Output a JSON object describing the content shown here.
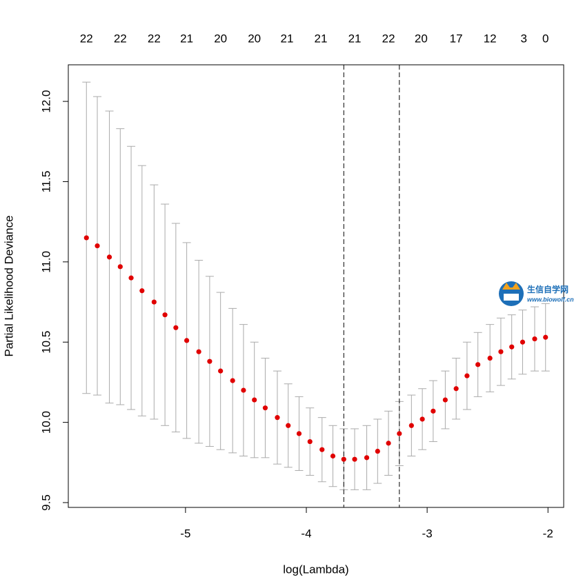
{
  "chart_data": {
    "type": "errorbar",
    "xlabel": "log(Lambda)",
    "ylabel": "Partial Likelihood Deviance",
    "x": [
      -5.82,
      -5.73,
      -5.63,
      -5.54,
      -5.45,
      -5.36,
      -5.26,
      -5.17,
      -5.08,
      -4.99,
      -4.89,
      -4.8,
      -4.71,
      -4.61,
      -4.52,
      -4.43,
      -4.34,
      -4.24,
      -4.15,
      -4.06,
      -3.97,
      -3.87,
      -3.78,
      -3.69,
      -3.6,
      -3.5,
      -3.41,
      -3.32,
      -3.23,
      -3.13,
      -3.04,
      -2.95,
      -2.85,
      -2.76,
      -2.67,
      -2.58,
      -2.48,
      -2.39,
      -2.3,
      -2.21,
      -2.11,
      -2.02
    ],
    "values": [
      11.15,
      11.1,
      11.03,
      10.97,
      10.9,
      10.82,
      10.75,
      10.67,
      10.59,
      10.51,
      10.44,
      10.38,
      10.32,
      10.26,
      10.2,
      10.14,
      10.09,
      10.03,
      9.98,
      9.93,
      9.88,
      9.83,
      9.79,
      9.77,
      9.77,
      9.78,
      9.82,
      9.87,
      9.93,
      9.98,
      10.02,
      10.07,
      10.14,
      10.21,
      10.29,
      10.36,
      10.4,
      10.44,
      10.47,
      10.5,
      10.52,
      10.53
    ],
    "errors": [
      0.97,
      0.93,
      0.91,
      0.86,
      0.82,
      0.78,
      0.73,
      0.69,
      0.65,
      0.61,
      0.57,
      0.53,
      0.49,
      0.45,
      0.41,
      0.36,
      0.31,
      0.29,
      0.26,
      0.23,
      0.21,
      0.2,
      0.19,
      0.19,
      0.19,
      0.2,
      0.2,
      0.2,
      0.2,
      0.19,
      0.19,
      0.19,
      0.18,
      0.19,
      0.21,
      0.2,
      0.21,
      0.21,
      0.2,
      0.2,
      0.2,
      0.21
    ],
    "color": "#e00000",
    "error_color": "#aaaaaa",
    "vlines": [
      -3.69,
      -3.23
    ],
    "xlim": [
      -5.97,
      -1.87
    ],
    "ylim": [
      9.47,
      12.228
    ],
    "xticks": [
      -5,
      -4,
      -3,
      -2
    ],
    "yticks": [
      9.5,
      {
        "value": 10,
        "label": "10.0"
      },
      10.5,
      {
        "value": 11,
        "label": "11.0"
      },
      11.5,
      {
        "value": 12,
        "label": "12.0"
      }
    ],
    "x2ticks": [
      {
        "value": -5.82,
        "label": "22"
      },
      {
        "value": -5.54,
        "label": "22"
      },
      {
        "value": -5.26,
        "label": "22"
      },
      {
        "value": -4.99,
        "label": "21"
      },
      {
        "value": -4.71,
        "label": "20"
      },
      {
        "value": -4.43,
        "label": "20"
      },
      {
        "value": -4.16,
        "label": "21"
      },
      {
        "value": -3.88,
        "label": "21"
      },
      {
        "value": -3.6,
        "label": "21"
      },
      {
        "value": -3.32,
        "label": "22"
      },
      {
        "value": -3.05,
        "label": "20"
      },
      {
        "value": -2.76,
        "label": "17"
      },
      {
        "value": -2.48,
        "label": "12"
      },
      {
        "value": -2.2,
        "label": "3"
      },
      {
        "value": -2.02,
        "label": "0"
      }
    ]
  },
  "watermark": {
    "name": "生信自学网",
    "url": "www.biowolf.cn"
  }
}
